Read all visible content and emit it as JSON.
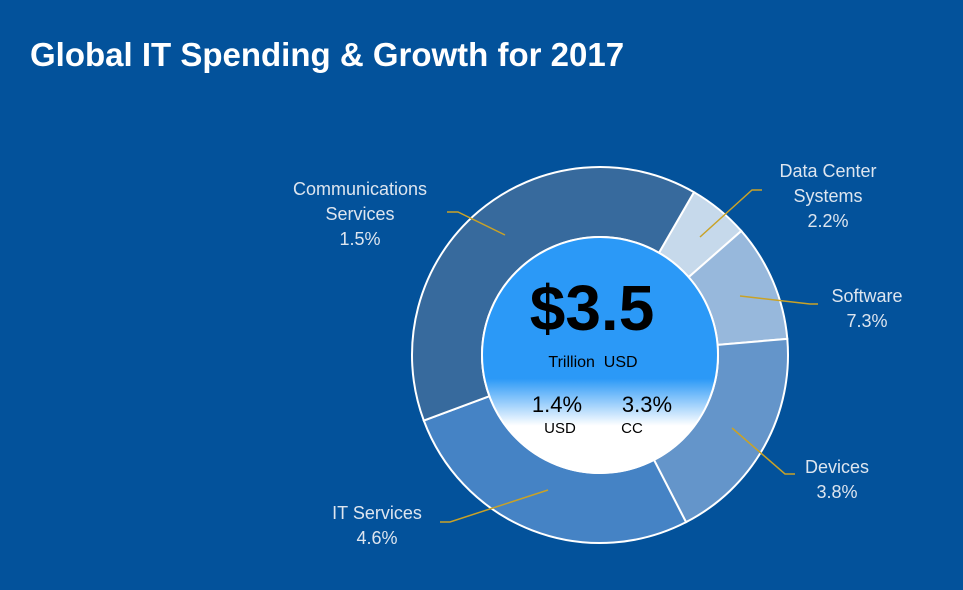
{
  "title": "Global IT Spending & Growth for 2017",
  "chart_data": {
    "type": "pie",
    "donut": true,
    "title": "Global IT Spending & Growth for 2017",
    "segments": [
      {
        "name": "Data Center Systems",
        "label_lines": [
          "Data Center",
          "Systems",
          "2.2%"
        ],
        "growth": "2.2%",
        "share_pct": 5.2,
        "color": "#c6d9eb"
      },
      {
        "name": "Software",
        "label_lines": [
          "Software",
          "7.3%"
        ],
        "growth": "7.3%",
        "share_pct": 10.1,
        "color": "#97b8dc"
      },
      {
        "name": "Devices",
        "label_lines": [
          "Devices",
          "3.8%"
        ],
        "growth": "3.8%",
        "share_pct": 18.8,
        "color": "#6495ca"
      },
      {
        "name": "IT Services",
        "label_lines": [
          "IT Services",
          "4.6%"
        ],
        "growth": "4.6%",
        "share_pct": 26.9,
        "color": "#4583c5"
      },
      {
        "name": "Communications Services",
        "label_lines": [
          "Communications",
          "Services",
          "1.5%"
        ],
        "growth": "1.5%",
        "share_pct": 39.0,
        "color": "#376a9d"
      }
    ],
    "center": {
      "total": "$3.5",
      "unit": "Trillion  USD",
      "growth_usd": "1.4%",
      "growth_usd_label": "USD",
      "growth_cc": "3.3%",
      "growth_cc_label": "CC"
    },
    "colors": {
      "background": "#03529b",
      "leader": "#c9a227",
      "center_top": "#2b99f7",
      "center_bottom": "#ffffff"
    }
  }
}
